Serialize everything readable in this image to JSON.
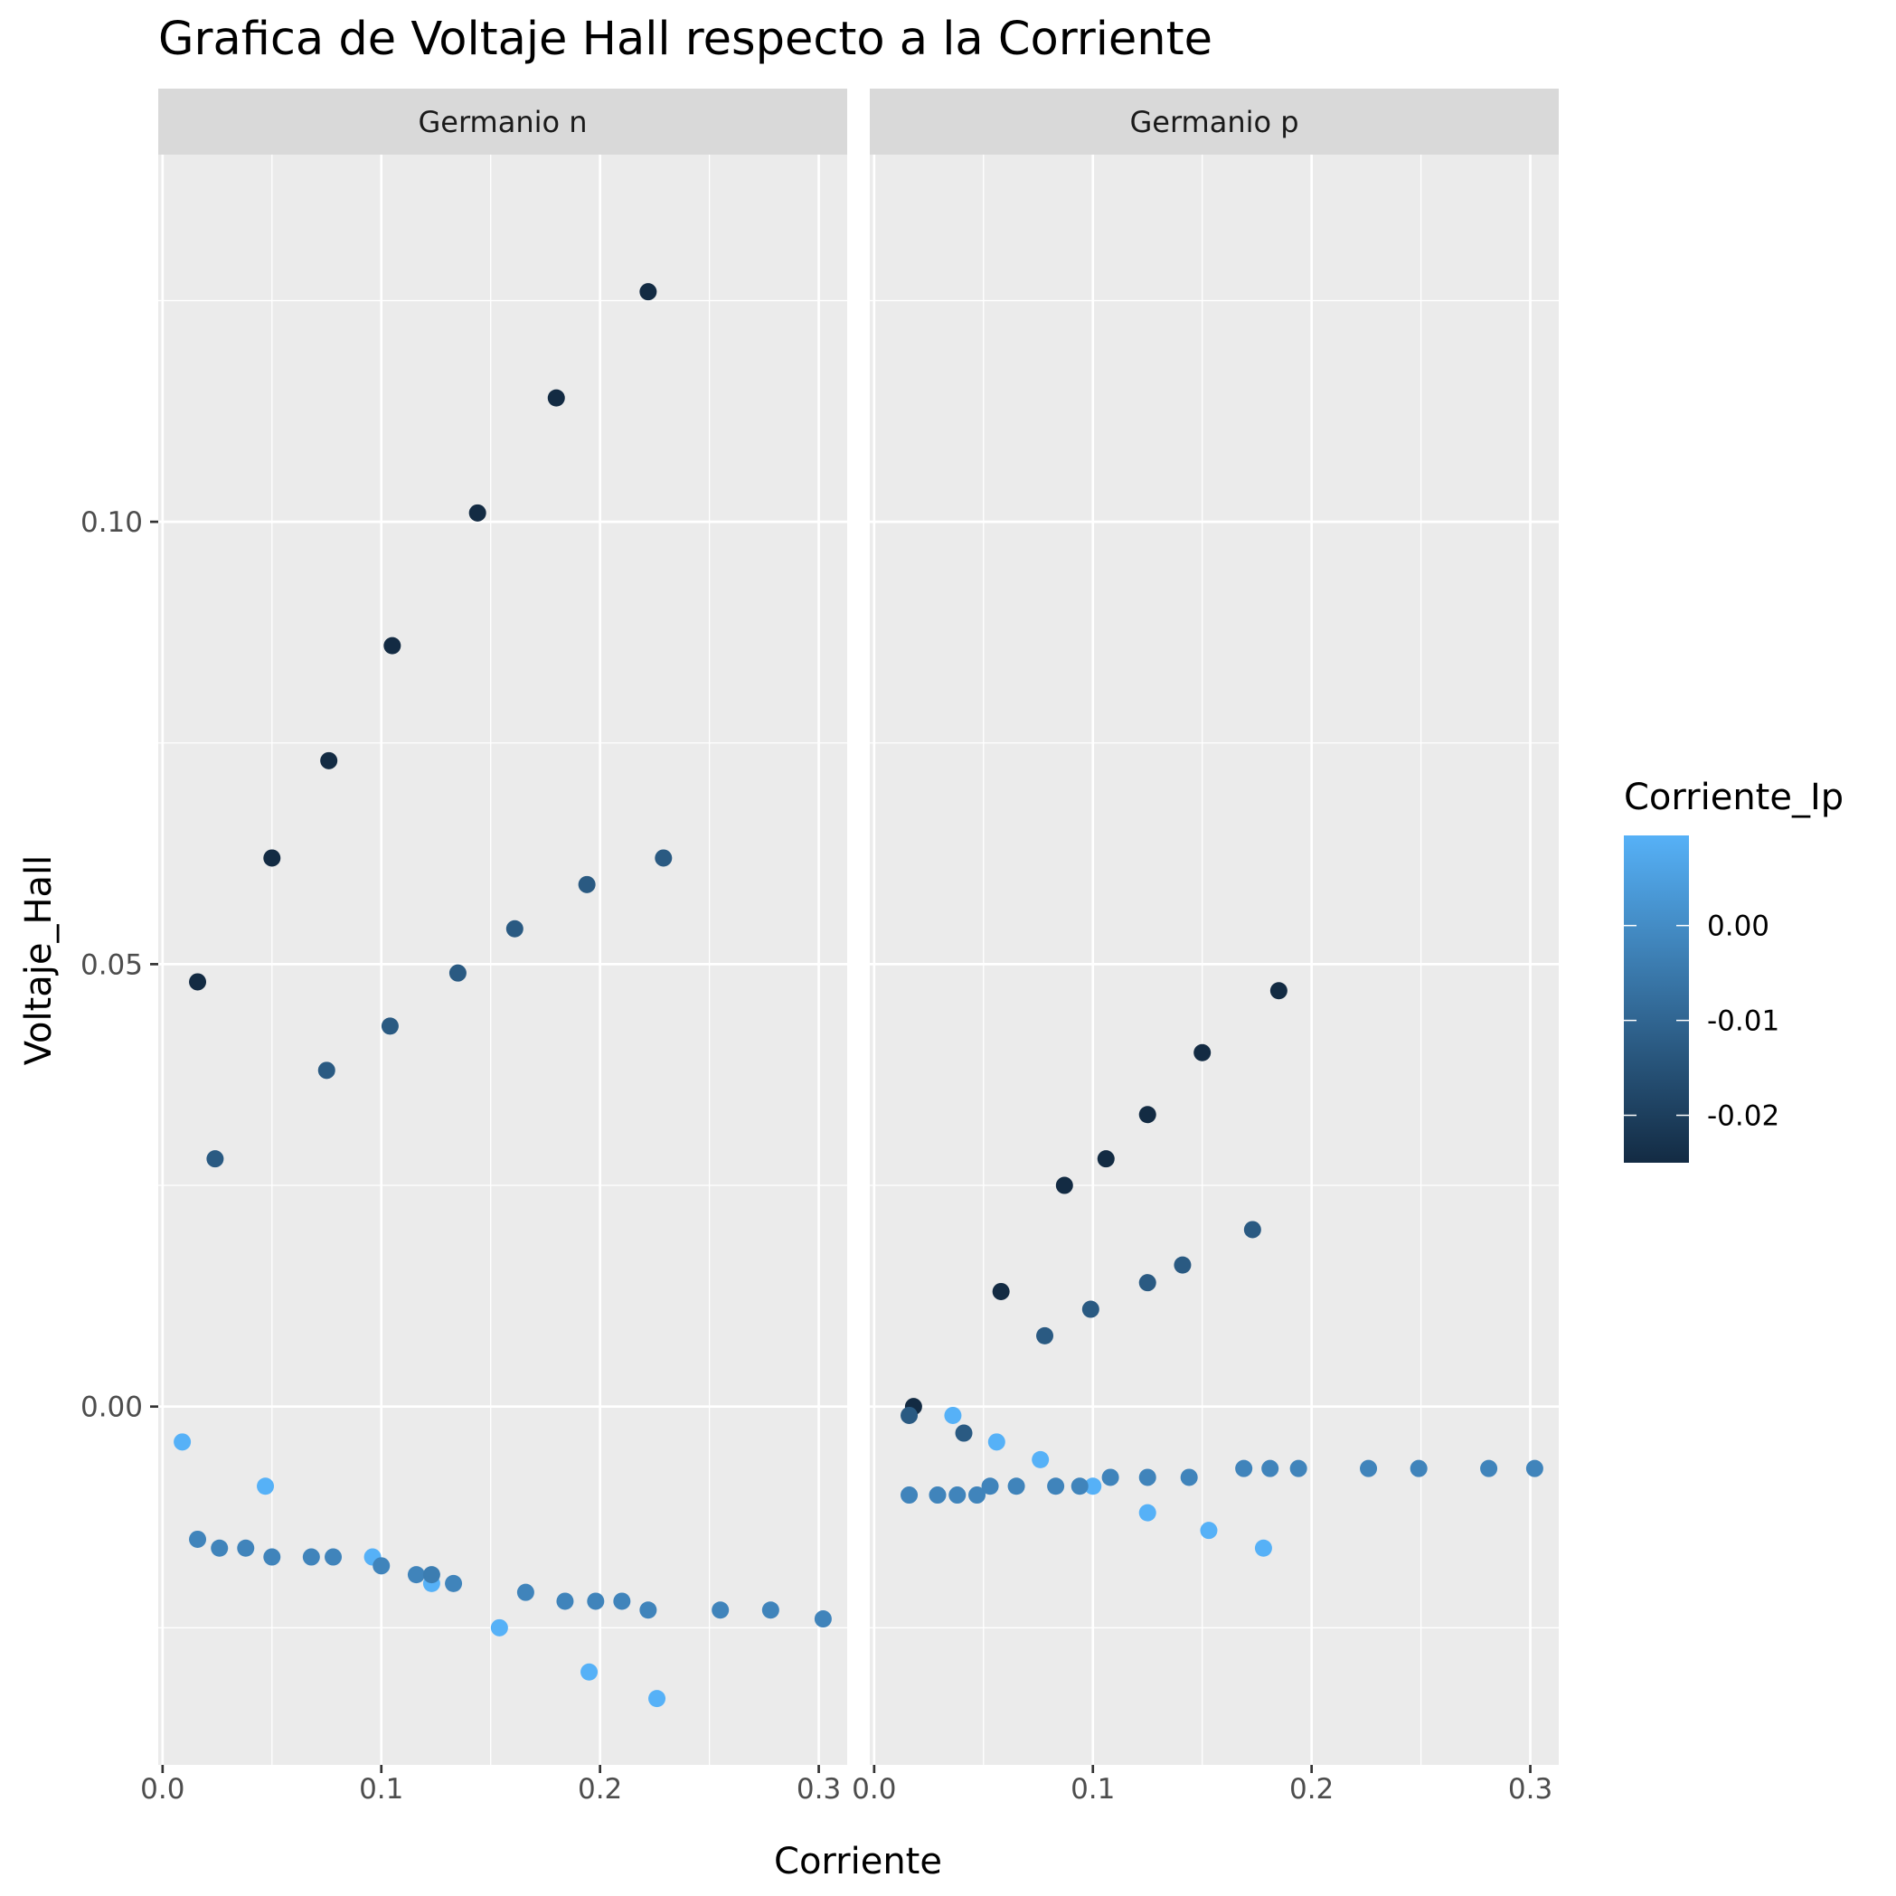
{
  "chart_data": {
    "type": "scatter",
    "title": "Grafica de Voltaje Hall respecto a la Corriente",
    "xlabel": "Corriente",
    "ylabel": "Voltaje_Hall",
    "xlim": [
      -0.002,
      0.313
    ],
    "ylim": [
      -0.0405,
      0.1415
    ],
    "xticks": [
      0.0,
      0.1,
      0.2,
      0.3
    ],
    "xtick_labels": [
      "0.0",
      "0.1",
      "0.2",
      "0.3"
    ],
    "yticks": [
      0.0,
      0.05,
      0.1
    ],
    "ytick_labels": [
      "0.00",
      "0.05",
      "0.10"
    ],
    "grid": true,
    "legend": {
      "title": "Corriente_Ip",
      "position": "right",
      "type": "colorbar",
      "range": [
        -0.025,
        0.0095
      ],
      "ticks": [
        0.0,
        -0.01,
        -0.02
      ],
      "tick_labels": [
        "0.00",
        "-0.01",
        "-0.02"
      ],
      "color_low": "#132B43",
      "color_high": "#56B1F7"
    },
    "panels": [
      {
        "name": "Germanio  n",
        "points": [
          {
            "x": 0.016,
            "y": 0.048,
            "c": -0.025
          },
          {
            "x": 0.05,
            "y": 0.062,
            "c": -0.025
          },
          {
            "x": 0.076,
            "y": 0.073,
            "c": -0.025
          },
          {
            "x": 0.105,
            "y": 0.086,
            "c": -0.025
          },
          {
            "x": 0.144,
            "y": 0.101,
            "c": -0.025
          },
          {
            "x": 0.18,
            "y": 0.114,
            "c": -0.025
          },
          {
            "x": 0.222,
            "y": 0.126,
            "c": -0.025
          },
          {
            "x": 0.024,
            "y": 0.028,
            "c": -0.013
          },
          {
            "x": 0.075,
            "y": 0.038,
            "c": -0.013
          },
          {
            "x": 0.104,
            "y": 0.043,
            "c": -0.013
          },
          {
            "x": 0.135,
            "y": 0.049,
            "c": -0.013
          },
          {
            "x": 0.161,
            "y": 0.054,
            "c": -0.013
          },
          {
            "x": 0.194,
            "y": 0.059,
            "c": -0.013
          },
          {
            "x": 0.229,
            "y": 0.062,
            "c": -0.013
          },
          {
            "x": 0.009,
            "y": -0.004,
            "c": 0.0095
          },
          {
            "x": 0.047,
            "y": -0.009,
            "c": 0.0095
          },
          {
            "x": 0.096,
            "y": -0.017,
            "c": 0.0095
          },
          {
            "x": 0.123,
            "y": -0.02,
            "c": 0.0095
          },
          {
            "x": 0.154,
            "y": -0.025,
            "c": 0.0095
          },
          {
            "x": 0.195,
            "y": -0.03,
            "c": 0.0095
          },
          {
            "x": 0.226,
            "y": -0.033,
            "c": 0.0095
          },
          {
            "x": 0.016,
            "y": -0.015,
            "c": -0.002
          },
          {
            "x": 0.026,
            "y": -0.016,
            "c": -0.002
          },
          {
            "x": 0.038,
            "y": -0.016,
            "c": -0.002
          },
          {
            "x": 0.05,
            "y": -0.017,
            "c": -0.002
          },
          {
            "x": 0.068,
            "y": -0.017,
            "c": -0.002
          },
          {
            "x": 0.078,
            "y": -0.017,
            "c": -0.002
          },
          {
            "x": 0.1,
            "y": -0.018,
            "c": -0.002
          },
          {
            "x": 0.116,
            "y": -0.019,
            "c": -0.002
          },
          {
            "x": 0.123,
            "y": -0.019,
            "c": -0.004
          },
          {
            "x": 0.133,
            "y": -0.02,
            "c": -0.002
          },
          {
            "x": 0.166,
            "y": -0.021,
            "c": -0.002
          },
          {
            "x": 0.184,
            "y": -0.022,
            "c": -0.002
          },
          {
            "x": 0.198,
            "y": -0.022,
            "c": -0.002
          },
          {
            "x": 0.21,
            "y": -0.022,
            "c": -0.002
          },
          {
            "x": 0.222,
            "y": -0.023,
            "c": -0.002
          },
          {
            "x": 0.255,
            "y": -0.023,
            "c": -0.002
          },
          {
            "x": 0.278,
            "y": -0.023,
            "c": -0.002
          },
          {
            "x": 0.302,
            "y": -0.024,
            "c": -0.002
          }
        ]
      },
      {
        "name": "Germanio  p",
        "points": [
          {
            "x": 0.018,
            "y": 0.0,
            "c": -0.025
          },
          {
            "x": 0.058,
            "y": 0.013,
            "c": -0.025
          },
          {
            "x": 0.087,
            "y": 0.025,
            "c": -0.025
          },
          {
            "x": 0.106,
            "y": 0.028,
            "c": -0.025
          },
          {
            "x": 0.125,
            "y": 0.033,
            "c": -0.025
          },
          {
            "x": 0.15,
            "y": 0.04,
            "c": -0.025
          },
          {
            "x": 0.185,
            "y": 0.047,
            "c": -0.025
          },
          {
            "x": 0.016,
            "y": -0.001,
            "c": -0.013
          },
          {
            "x": 0.041,
            "y": -0.003,
            "c": -0.013
          },
          {
            "x": 0.078,
            "y": 0.008,
            "c": -0.013
          },
          {
            "x": 0.099,
            "y": 0.011,
            "c": -0.013
          },
          {
            "x": 0.125,
            "y": 0.014,
            "c": -0.013
          },
          {
            "x": 0.141,
            "y": 0.016,
            "c": -0.013
          },
          {
            "x": 0.173,
            "y": 0.02,
            "c": -0.013
          },
          {
            "x": 0.036,
            "y": -0.001,
            "c": 0.0095
          },
          {
            "x": 0.056,
            "y": -0.004,
            "c": 0.0095
          },
          {
            "x": 0.076,
            "y": -0.006,
            "c": 0.0095
          },
          {
            "x": 0.1,
            "y": -0.009,
            "c": 0.0095
          },
          {
            "x": 0.125,
            "y": -0.012,
            "c": 0.0095
          },
          {
            "x": 0.153,
            "y": -0.014,
            "c": 0.0095
          },
          {
            "x": 0.178,
            "y": -0.016,
            "c": 0.0095
          },
          {
            "x": 0.016,
            "y": -0.01,
            "c": -0.002
          },
          {
            "x": 0.029,
            "y": -0.01,
            "c": -0.002
          },
          {
            "x": 0.038,
            "y": -0.01,
            "c": -0.002
          },
          {
            "x": 0.047,
            "y": -0.01,
            "c": -0.002
          },
          {
            "x": 0.053,
            "y": -0.009,
            "c": -0.002
          },
          {
            "x": 0.065,
            "y": -0.009,
            "c": -0.002
          },
          {
            "x": 0.083,
            "y": -0.009,
            "c": -0.002
          },
          {
            "x": 0.094,
            "y": -0.009,
            "c": -0.002
          },
          {
            "x": 0.108,
            "y": -0.008,
            "c": -0.002
          },
          {
            "x": 0.125,
            "y": -0.008,
            "c": -0.002
          },
          {
            "x": 0.144,
            "y": -0.008,
            "c": -0.002
          },
          {
            "x": 0.169,
            "y": -0.007,
            "c": -0.002
          },
          {
            "x": 0.181,
            "y": -0.007,
            "c": -0.002
          },
          {
            "x": 0.194,
            "y": -0.007,
            "c": -0.002
          },
          {
            "x": 0.226,
            "y": -0.007,
            "c": -0.002
          },
          {
            "x": 0.249,
            "y": -0.007,
            "c": -0.002
          },
          {
            "x": 0.281,
            "y": -0.007,
            "c": -0.002
          },
          {
            "x": 0.302,
            "y": -0.007,
            "c": -0.002
          }
        ]
      }
    ]
  }
}
